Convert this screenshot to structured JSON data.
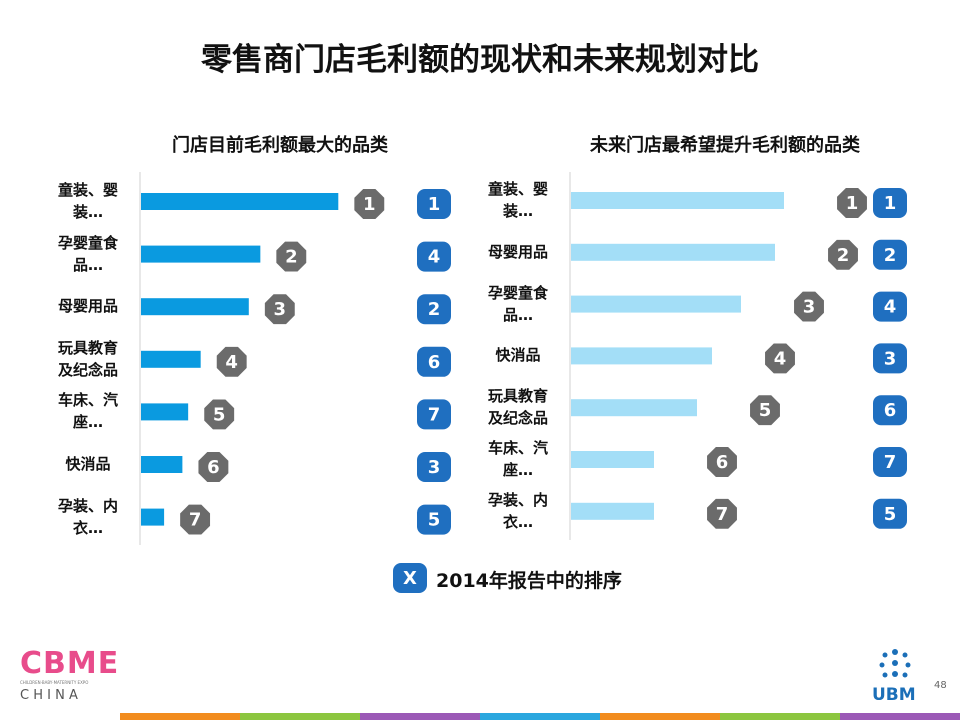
{
  "title": "零售商门店毛利额的现状和未来规划对比",
  "chart_data": [
    {
      "type": "bar",
      "orientation": "horizontal",
      "title": "门店目前毛利额最大的品类",
      "categories": [
        "童装、婴装…",
        "孕婴童食品…",
        "母婴用品",
        "玩具教育及纪念品",
        "车床、汽座…",
        "快消品",
        "孕装、内衣…"
      ],
      "values": [
        205,
        124,
        112,
        62,
        49,
        43,
        24
      ],
      "color": "#0a9ae0",
      "ranks": [
        1,
        2,
        3,
        4,
        5,
        6,
        7
      ],
      "ranks_2014": [
        1,
        4,
        2,
        6,
        7,
        3,
        5
      ]
    },
    {
      "type": "bar",
      "orientation": "horizontal",
      "title": "未来门店最希望提升毛利额的品类",
      "categories": [
        "童装、婴装…",
        "母婴用品",
        "孕婴童食品…",
        "快消品",
        "玩具教育及纪念品",
        "车床、汽座…",
        "孕装、内衣…"
      ],
      "values": [
        213,
        204,
        170,
        141,
        126,
        83,
        83
      ],
      "color": "#a3def7",
      "ranks": [
        1,
        2,
        3,
        4,
        5,
        6,
        7
      ],
      "ranks_2014": [
        1,
        2,
        4,
        3,
        6,
        7,
        5
      ]
    }
  ],
  "legend": {
    "marker": "X",
    "text": "2014年报告中的排序"
  },
  "footer": {
    "logo": "CBME",
    "logo_tagline": "CHILDREN·BABY·MATERNITY EXPO",
    "logo_sub": "C H I N A",
    "brand": "UBM",
    "page": "48"
  }
}
